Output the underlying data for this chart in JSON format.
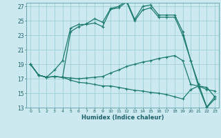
{
  "xlabel": "Humidex (Indice chaleur)",
  "background_color": "#cce9f0",
  "grid_color": "#9dcfda",
  "line_color": "#1a7a6e",
  "xlim": [
    -0.5,
    23.5
  ],
  "ylim": [
    13,
    27.5
  ],
  "yticks": [
    13,
    15,
    17,
    19,
    21,
    23,
    25,
    27
  ],
  "xticks": [
    0,
    1,
    2,
    3,
    4,
    5,
    6,
    7,
    8,
    9,
    10,
    11,
    12,
    13,
    14,
    15,
    16,
    17,
    18,
    19,
    20,
    21,
    22,
    23
  ],
  "lines": [
    [
      19.0,
      17.5,
      17.2,
      17.3,
      17.2,
      23.5,
      24.2,
      24.6,
      25.3,
      24.8,
      26.7,
      27.0,
      27.8,
      25.2,
      27.0,
      27.2,
      25.8,
      25.8,
      25.8,
      23.5,
      19.5,
      16.2,
      13.1,
      14.5
    ],
    [
      19.0,
      17.5,
      17.2,
      18.2,
      19.5,
      24.0,
      24.5,
      24.5,
      24.7,
      24.2,
      26.6,
      26.8,
      27.6,
      25.0,
      26.5,
      26.8,
      25.5,
      25.5,
      25.5,
      23.0,
      19.5,
      15.8,
      13.0,
      14.2
    ],
    [
      19.0,
      17.5,
      17.2,
      17.3,
      17.2,
      17.1,
      17.0,
      17.1,
      17.2,
      17.3,
      17.8,
      18.2,
      18.7,
      19.0,
      19.3,
      19.5,
      19.8,
      20.0,
      20.2,
      19.5,
      16.2,
      16.0,
      15.5,
      15.3
    ],
    [
      19.0,
      17.5,
      17.2,
      17.3,
      17.2,
      16.8,
      16.5,
      16.4,
      16.2,
      16.0,
      16.0,
      15.8,
      15.6,
      15.4,
      15.3,
      15.1,
      15.0,
      14.8,
      14.5,
      14.2,
      15.5,
      16.0,
      15.8,
      14.5
    ]
  ]
}
